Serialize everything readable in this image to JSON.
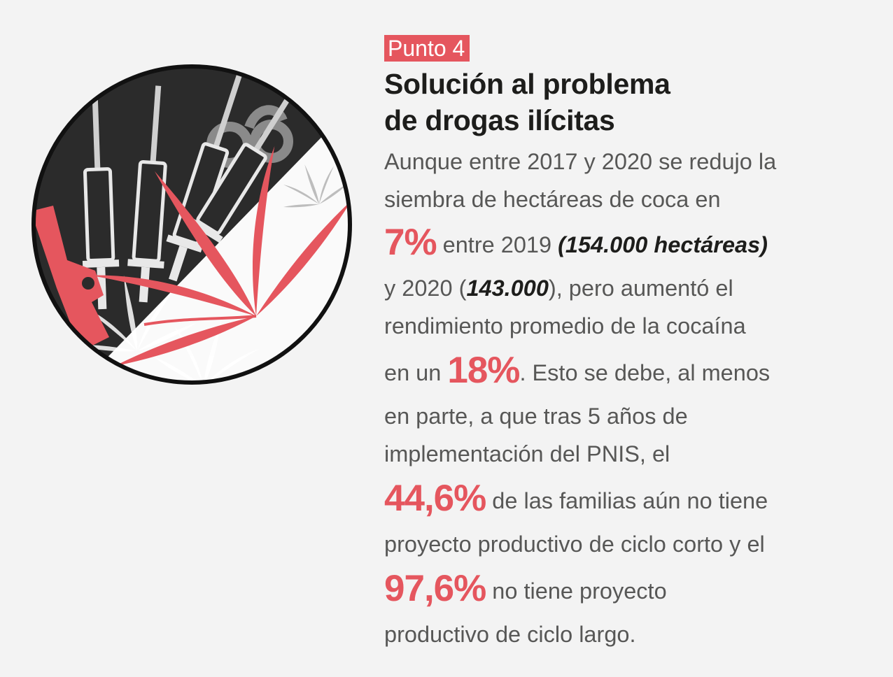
{
  "tag": "Punto 4",
  "title": [
    "Solución al problema",
    "de drogas ilícitas"
  ],
  "body": {
    "l1": "Aunque entre 2017 y 2020 se redujo la",
    "l2": "siembra de hectáreas de coca en",
    "stat1": "7%",
    "l3a": " entre 2019 ",
    "l3b": "(154.000 hectáreas)",
    "l4a": "y 2020 (",
    "l4b": "143.000",
    "l4c": "), pero aumentó el",
    "l5": "rendimiento promedio de la cocaína",
    "l6a": "en un ",
    "stat2": "18%",
    "l6b": ". Esto se debe, al menos",
    "l7": "en parte, a que tras 5 años de",
    "l8": "implementación del PNIS, el",
    "stat3": "44,6%",
    "l9": " de las familias aún no tiene",
    "l10": "proyecto productivo de ciclo corto y el",
    "stat4": "97,6%",
    "l11": " no tiene proyecto",
    "l12": "productivo de ciclo largo."
  },
  "colors": {
    "accent": "#e5565e",
    "dark": "#2b2b2b",
    "text": "#575756",
    "title": "#1d1d1b"
  },
  "icons": [
    "syringe-icon",
    "handcuffs-icon",
    "pistol-icon",
    "cannabis-leaf-icon"
  ]
}
